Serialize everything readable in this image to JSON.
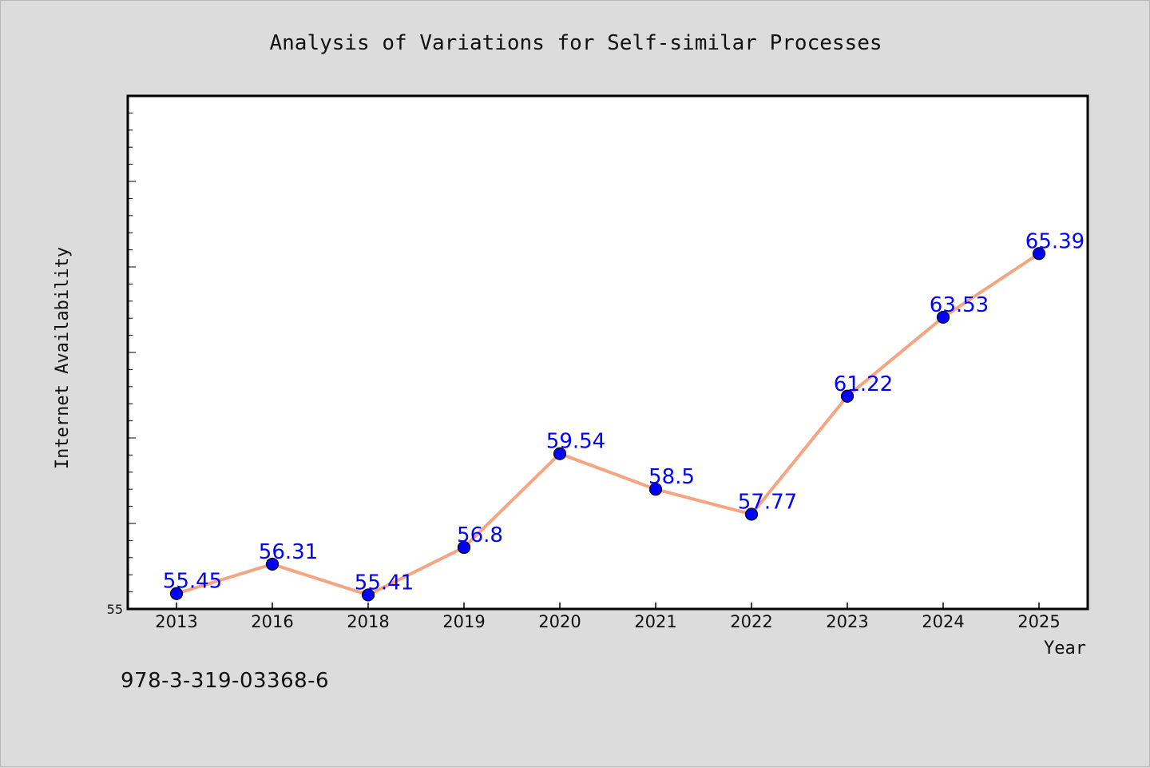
{
  "chart_data": {
    "type": "line",
    "title": "Analysis of Variations for Self-similar Processes",
    "xlabel": "Year",
    "ylabel": "Internet Availability",
    "categories": [
      "2013",
      "2016",
      "2018",
      "2019",
      "2020",
      "2021",
      "2022",
      "2023",
      "2024",
      "2025"
    ],
    "series": [
      {
        "values": [
          55.45,
          56.31,
          55.41,
          56.8,
          59.54,
          58.5,
          57.77,
          61.22,
          63.53,
          65.39
        ],
        "labels": [
          "55.45",
          "56.31",
          "55.41",
          "56.8",
          "59.54",
          "58.5",
          "57.77",
          "61.22",
          "63.53",
          "65.39"
        ]
      }
    ],
    "ylim": [
      55,
      70
    ],
    "y_tick_labels": [
      "55"
    ],
    "grid": false,
    "line_color": "#f4a582",
    "marker_color": "#0000ff",
    "label_color": "#0000ff"
  },
  "footer_text": "978-3-319-03368-6"
}
